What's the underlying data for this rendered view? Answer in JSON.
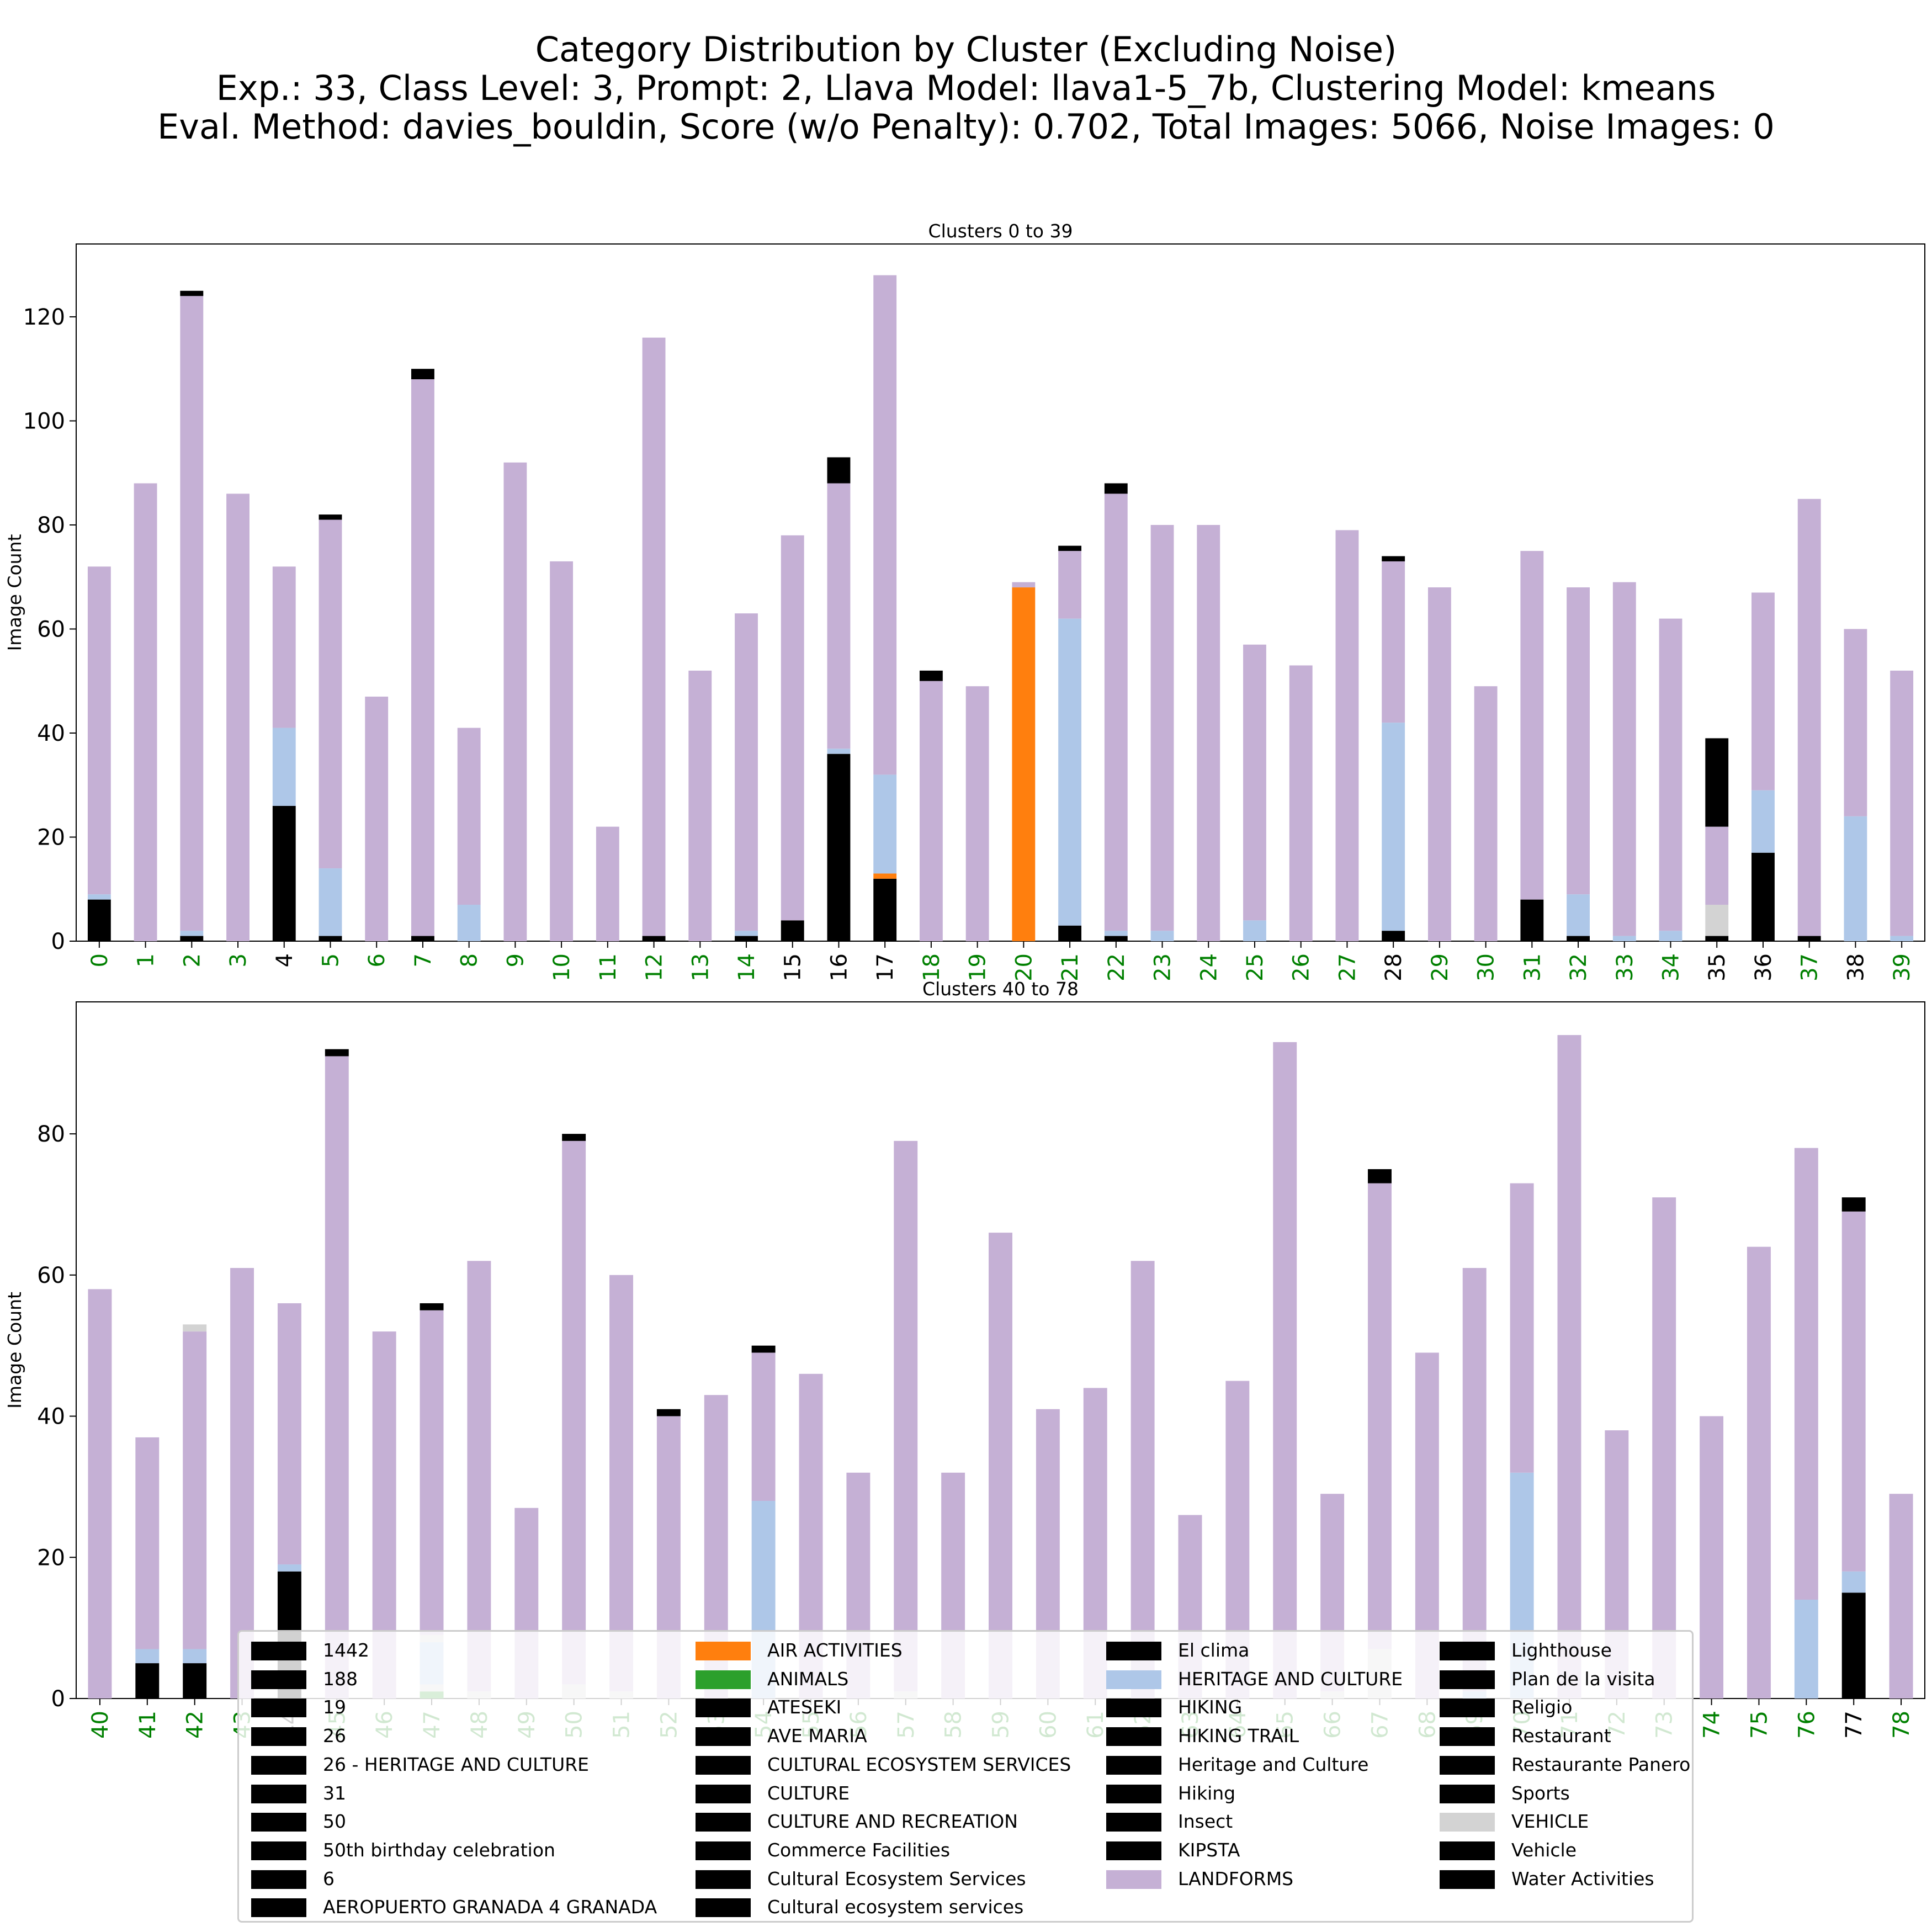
{
  "title": {
    "line1": "Category Distribution by Cluster (Excluding Noise)",
    "line2": "Exp.: 33, Class Level: 3, Prompt: 2, Llava Model: llava1-5_7b, Clustering Model: kmeans",
    "line3": "Eval. Method: davies_bouldin, Score (w/o Penalty): 0.702, Total Images: 5066, Noise Images: 0"
  },
  "colors": {
    "LANDFORMS": "#c5b0d5",
    "HERITAGE AND CULTURE": "#aec7e8",
    "AIR ACTIVITIES": "#ff7f0e",
    "ANIMALS": "#2ca02c",
    "VEHICLE": "#d3d3d3",
    "OTHER": "#000000",
    "tick_green": "#008000",
    "tick_black": "#000000"
  },
  "legend": [
    "1442",
    "188",
    "19",
    "26",
    "26 - HERITAGE AND CULTURE",
    "31",
    "50",
    "50th birthday celebration",
    "6",
    "AEROPUERTO GRANADA 4 GRANADA",
    "AIR ACTIVITIES",
    "ANIMALS",
    "ATESEKI",
    "AVE MARIA",
    "CULTURAL ECOSYSTEM SERVICES",
    "CULTURE",
    "CULTURE AND RECREATION",
    "Commerce Facilities",
    "Cultural Ecosystem Services",
    "Cultural ecosystem services",
    "El clima",
    "HERITAGE AND CULTURE",
    "HIKING",
    "HIKING TRAIL",
    "Heritage and Culture",
    "Hiking",
    "Insect",
    "KIPSTA",
    "LANDFORMS",
    "Lighthouse",
    "Plan de la visita",
    "Religio",
    "Restaurant",
    "Restaurante Panero",
    "Sports",
    "VEHICLE",
    "Vehicle",
    "Water Activities"
  ],
  "chart_data": [
    {
      "type": "bar",
      "stacked": true,
      "title": "Clusters 0 to 39",
      "xlabel": "",
      "ylabel": "Image Count",
      "ylim": [
        0,
        134
      ],
      "yticks": [
        0,
        20,
        40,
        60,
        80,
        100,
        120
      ],
      "categories": [
        "0",
        "1",
        "2",
        "3",
        "4",
        "5",
        "6",
        "7",
        "8",
        "9",
        "10",
        "11",
        "12",
        "13",
        "14",
        "15",
        "16",
        "17",
        "18",
        "19",
        "20",
        "21",
        "22",
        "23",
        "24",
        "25",
        "26",
        "27",
        "28",
        "29",
        "30",
        "31",
        "32",
        "33",
        "34",
        "35",
        "36",
        "37",
        "38",
        "39"
      ],
      "tick_colors": [
        "green",
        "green",
        "green",
        "green",
        "black",
        "green",
        "green",
        "green",
        "green",
        "green",
        "green",
        "green",
        "green",
        "green",
        "green",
        "black",
        "black",
        "black",
        "green",
        "green",
        "green",
        "green",
        "green",
        "green",
        "green",
        "green",
        "green",
        "green",
        "black",
        "green",
        "green",
        "green",
        "green",
        "green",
        "green",
        "black",
        "black",
        "green",
        "black",
        "green"
      ],
      "series": [
        {
          "name": "Other categories",
          "color": "#000000",
          "values": [
            8,
            0,
            1,
            0,
            26,
            1,
            0,
            1,
            0,
            0,
            0,
            0,
            1,
            0,
            1,
            4,
            36,
            12,
            0,
            0,
            0,
            3,
            1,
            0,
            0,
            0,
            0,
            0,
            2,
            0,
            0,
            8,
            1,
            0,
            0,
            1,
            17,
            1,
            0,
            0
          ]
        },
        {
          "name": "AIR ACTIVITIES",
          "color": "#ff7f0e",
          "values": [
            0,
            0,
            0,
            0,
            0,
            0,
            0,
            0,
            0,
            0,
            0,
            0,
            0,
            0,
            0,
            0,
            0,
            1,
            0,
            0,
            68,
            0,
            0,
            0,
            0,
            0,
            0,
            0,
            0,
            0,
            0,
            0,
            0,
            0,
            0,
            0,
            0,
            0,
            0,
            0
          ]
        },
        {
          "name": "HERITAGE AND CULTURE",
          "color": "#aec7e8",
          "values": [
            1,
            0,
            1,
            0,
            15,
            13,
            0,
            0,
            7,
            0,
            0,
            0,
            0,
            0,
            1,
            0,
            1,
            19,
            0,
            0,
            0,
            59,
            1,
            2,
            0,
            4,
            0,
            0,
            40,
            0,
            0,
            0,
            8,
            1,
            2,
            0,
            12,
            0,
            24,
            1
          ]
        },
        {
          "name": "VEHICLE",
          "color": "#d3d3d3",
          "values": [
            0,
            0,
            0,
            0,
            0,
            0,
            0,
            0,
            0,
            0,
            0,
            0,
            0,
            0,
            0,
            0,
            0,
            0,
            0,
            0,
            0,
            0,
            0,
            0,
            0,
            0,
            0,
            0,
            0,
            0,
            0,
            0,
            0,
            0,
            0,
            6,
            0,
            0,
            0,
            0
          ]
        },
        {
          "name": "LANDFORMS",
          "color": "#c5b0d5",
          "values": [
            63,
            88,
            122,
            86,
            31,
            67,
            47,
            107,
            34,
            92,
            73,
            22,
            115,
            52,
            61,
            74,
            51,
            96,
            50,
            49,
            1,
            13,
            84,
            78,
            80,
            53,
            53,
            79,
            31,
            68,
            49,
            67,
            59,
            68,
            60,
            15,
            38,
            84,
            36,
            51
          ]
        },
        {
          "name": "Other categories (top)",
          "color": "#000000",
          "values": [
            0,
            0,
            1,
            0,
            0,
            1,
            0,
            2,
            0,
            0,
            0,
            0,
            0,
            0,
            0,
            0,
            5,
            0,
            2,
            0,
            0,
            1,
            2,
            0,
            0,
            0,
            0,
            0,
            1,
            0,
            0,
            0,
            0,
            0,
            0,
            17,
            0,
            0,
            0,
            0
          ]
        }
      ]
    },
    {
      "type": "bar",
      "stacked": true,
      "title": "Clusters 40 to 78",
      "xlabel": "",
      "ylabel": "Image Count",
      "ylim": [
        0,
        98.7
      ],
      "yticks": [
        0,
        20,
        40,
        60,
        80
      ],
      "categories": [
        "40",
        "41",
        "42",
        "43",
        "44",
        "45",
        "46",
        "47",
        "48",
        "49",
        "50",
        "51",
        "52",
        "53",
        "54",
        "55",
        "56",
        "57",
        "58",
        "59",
        "60",
        "61",
        "62",
        "63",
        "64",
        "65",
        "66",
        "67",
        "68",
        "69",
        "70",
        "71",
        "72",
        "73",
        "74",
        "75",
        "76",
        "77",
        "78"
      ],
      "tick_colors": [
        "green",
        "green",
        "green",
        "green",
        "black",
        "green",
        "green",
        "green",
        "green",
        "green",
        "green",
        "green",
        "green",
        "green",
        "green",
        "green",
        "green",
        "green",
        "green",
        "green",
        "green",
        "green",
        "green",
        "green",
        "green",
        "green",
        "green",
        "green",
        "green",
        "green",
        "green",
        "green",
        "green",
        "green",
        "green",
        "green",
        "green",
        "black",
        "green"
      ],
      "series": [
        {
          "name": "ANIMALS",
          "color": "#2ca02c",
          "values": [
            0,
            0,
            0,
            0,
            0,
            0,
            0,
            1,
            0,
            0,
            0,
            0,
            0,
            0,
            0,
            0,
            0,
            0,
            0,
            0,
            0,
            0,
            0,
            0,
            0,
            0,
            0,
            0,
            0,
            0,
            0,
            0,
            0,
            0,
            0,
            0,
            0,
            0,
            0
          ]
        },
        {
          "name": "VEHICLE",
          "color": "#d3d3d3",
          "values": [
            0,
            0,
            0,
            0,
            0,
            0,
            0,
            1,
            1,
            0,
            2,
            1,
            0,
            0,
            0,
            0,
            0,
            1,
            0,
            0,
            0,
            0,
            0,
            0,
            0,
            0,
            1,
            7,
            0,
            0,
            0,
            0,
            0,
            0,
            0,
            0,
            0,
            0,
            0
          ]
        },
        {
          "name": "Other categories",
          "color": "#000000",
          "values": [
            0,
            5,
            5,
            0,
            18,
            0,
            0,
            0,
            0,
            0,
            0,
            0,
            0,
            0,
            0,
            0,
            0,
            0,
            0,
            0,
            0,
            0,
            0,
            0,
            0,
            0,
            0,
            0,
            0,
            0,
            0,
            0,
            0,
            0,
            0,
            0,
            0,
            15,
            0
          ]
        },
        {
          "name": "HERITAGE AND CULTURE",
          "color": "#aec7e8",
          "values": [
            0,
            2,
            2,
            0,
            1,
            0,
            0,
            6,
            0,
            0,
            0,
            0,
            0,
            0,
            28,
            0,
            0,
            0,
            0,
            0,
            0,
            0,
            0,
            0,
            0,
            0,
            0,
            0,
            0,
            1,
            32,
            0,
            0,
            0,
            0,
            0,
            14,
            3,
            0
          ]
        },
        {
          "name": "VEHICLE (upper)",
          "color": "#d3d3d3",
          "values": [
            0,
            0,
            0,
            0,
            0,
            0,
            0,
            1,
            0,
            0,
            0,
            0,
            0,
            0,
            0,
            0,
            0,
            0,
            0,
            0,
            0,
            0,
            0,
            0,
            0,
            0,
            0,
            0,
            0,
            0,
            0,
            0,
            0,
            0,
            0,
            0,
            0,
            0,
            0
          ]
        },
        {
          "name": "LANDFORMS",
          "color": "#c5b0d5",
          "values": [
            58,
            30,
            45,
            61,
            37,
            91,
            52,
            46,
            61,
            27,
            77,
            59,
            40,
            43,
            21,
            46,
            32,
            78,
            32,
            66,
            41,
            44,
            62,
            26,
            45,
            93,
            28,
            66,
            49,
            60,
            41,
            94,
            38,
            71,
            40,
            64,
            64,
            51,
            29
          ]
        },
        {
          "name": "Other categories (top)",
          "color": "#000000",
          "values": [
            0,
            0,
            0,
            0,
            0,
            1,
            0,
            1,
            0,
            0,
            1,
            0,
            1,
            0,
            1,
            0,
            0,
            0,
            0,
            0,
            0,
            0,
            0,
            0,
            0,
            0,
            0,
            2,
            0,
            0,
            0,
            0,
            0,
            0,
            0,
            0,
            0,
            2,
            0
          ]
        },
        {
          "name": "VEHICLE (top)",
          "color": "#d3d3d3",
          "values": [
            0,
            0,
            1,
            0,
            0,
            0,
            0,
            0,
            0,
            0,
            0,
            0,
            0,
            0,
            0,
            0,
            0,
            0,
            0,
            0,
            0,
            0,
            0,
            0,
            0,
            0,
            0,
            0,
            0,
            0,
            0,
            0,
            0,
            0,
            0,
            0,
            0,
            0,
            0
          ]
        }
      ]
    }
  ]
}
